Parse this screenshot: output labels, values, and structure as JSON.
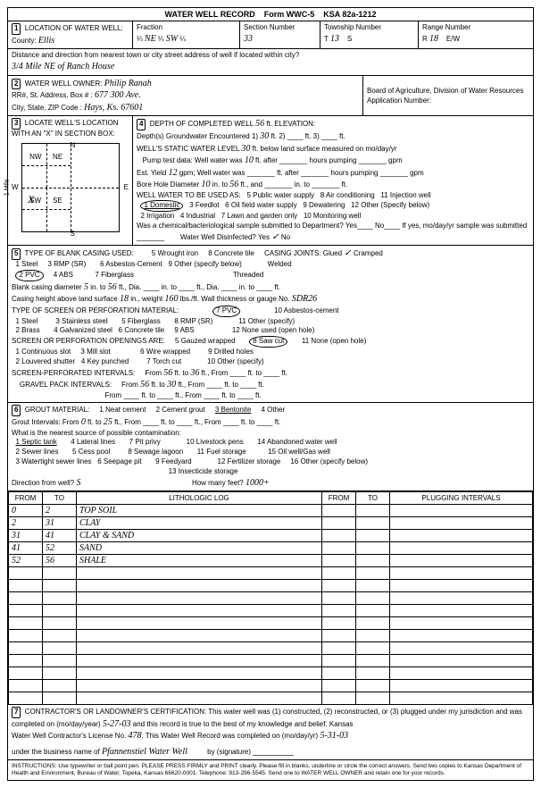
{
  "form": {
    "title": "WATER WELL RECORD",
    "formNo": "Form WWC-5",
    "ksa": "KSA 82a-1212"
  },
  "sec1": {
    "label": "LOCATION OF WATER WELL:",
    "countyLabel": "County:",
    "county": "Ellis",
    "fractionLabel": "Fraction",
    "frac1": "NE",
    "frac2": "SW",
    "sectionLabel": "Section Number",
    "section": "33",
    "townshipLabel": "Township Number",
    "township_t": "T",
    "township": "13",
    "township_s": "S",
    "rangeLabel": "Range Number",
    "range_r": "R",
    "range": "18",
    "range_ew": "E/W",
    "distanceLabel": "Distance and direction from nearest town or city street address of well if located within city?",
    "distance": "3/4 Mile NE of Ranch House"
  },
  "sec2": {
    "label": "WATER WELL OWNER:",
    "owner": "Philip Ranah",
    "addrLabel": "RR#, St. Address, Box # :",
    "addr": "677 300 Ave.",
    "cityLabel": "City, State, ZIP Code :",
    "city": "Hays, Ks. 67601",
    "boardLabel": "Board of Agriculture, Division of Water Resources",
    "appLabel": "Application Number:"
  },
  "sec3": {
    "label": "LOCATE WELL'S LOCATION WITH AN \"X\" IN SECTION BOX:",
    "n": "N",
    "s": "S",
    "e": "E",
    "w": "W",
    "nw": "NW",
    "ne": "NE",
    "sw": "SW",
    "se": "SE",
    "mile": "1 Mile"
  },
  "sec4": {
    "label": "DEPTH OF COMPLETED WELL",
    "depth": "56",
    "depthFt": "ft. ELEVATION:",
    "gwLabel": "Depth(s) Groundwater Encountered",
    "gw1": "30",
    "swlLabel": "WELL'S STATIC WATER LEVEL",
    "swl": "30",
    "swlSuffix": "ft. below land surface measured on mo/day/yr",
    "pumpLabel": "Pump test data: Well water was",
    "pump": "10",
    "pumpSuffix": "ft. after _______ hours pumping _______ gpm",
    "estLabel": "Est. Yield",
    "est": "12",
    "estSuffix": "gpm; Well water was _______ ft. after _______ hours pumping _______ gpm",
    "boreLabel": "Bore Hole Diameter",
    "bore1": "10",
    "boreMid": "in. to",
    "bore2": "56",
    "boreSuffix": "ft., and _______ in. to _______ ft.",
    "useLabel": "WELL WATER TO BE USED AS:",
    "use1": "1 Domestic",
    "use2": "2 Irrigation",
    "use3": "3 Feedlot",
    "use4": "4 Industrial",
    "use5": "5 Public water supply",
    "use6": "6 Oil field water supply",
    "use7": "7 Lawn and garden only",
    "use8": "8 Air conditioning",
    "use9": "9 Dewatering",
    "use10": "10 Monitoring well",
    "use11": "11 Injection well",
    "use12": "12 Other (Specify below)",
    "bactLabel": "Was a chemical/bacteriological sample submitted to Department? Yes____ No____ If yes, mo/day/yr sample was submitted _______",
    "disinfLabel": "Water Well Disinfected? Yes",
    "disinfNo": "No"
  },
  "sec5": {
    "label": "TYPE OF BLANK CASING USED:",
    "c1": "1 Steel",
    "c2": "2 PVC",
    "c3": "3 RMP (SR)",
    "c4": "4 ABS",
    "c5": "5 Wrought iron",
    "c6": "6 Asbestos-Cement",
    "c7": "7 Fiberglass",
    "c8": "8 Concrete tile",
    "c9": "9 Other (specify below)",
    "jointsLabel": "CASING JOINTS: Glued",
    "joints2": "Cramped",
    "joints3": "Welded",
    "joints4": "Threaded",
    "diamLabel": "Blank casing diameter",
    "diam": "5",
    "diamMid": "in. to",
    "diam2": "56",
    "diamSuffix": "ft., Dia. ____ in. to ____ ft., Dia. ____ in. to ____ ft.",
    "heightLabel": "Casing height above land surface",
    "height": "18",
    "heightMid": "in., weight",
    "weight": "160",
    "weightSuffix": "lbs./ft. Wall thickness or gauge No.",
    "gauge": "SDR26",
    "screenLabel": "TYPE OF SCREEN OR PERFORATION MATERIAL:",
    "s1": "1 Steel",
    "s2": "2 Brass",
    "s3": "3 Stainless steel",
    "s4": "4 Galvanized steel",
    "s5": "5 Fiberglass",
    "s6": "6 Concrete tile",
    "s7": "7 PVC",
    "s8": "8 RMP (SR)",
    "s9": "9 ABS",
    "s10": "10 Asbestos-cement",
    "s11": "11 Other (specify)",
    "s12": "12 None used (open hole)",
    "openLabel": "SCREEN OR PERFORATION OPENINGS ARE:",
    "o1": "1 Continuous slot",
    "o2": "2 Louvered shutter",
    "o3": "3 Mill slot",
    "o4": "4 Key punched",
    "o5": "5 Gauzed wrapped",
    "o6": "6 Wire wrapped",
    "o7": "7 Torch cut",
    "o8": "8 Saw cut",
    "o9": "9 Drilled holes",
    "o10": "10 Other (specify)",
    "o11": "11 None (open hole)",
    "perfLabel": "SCREEN-PERFORATED INTERVALS:",
    "perfFrom": "From",
    "perf1": "56",
    "perfTo": "ft. to",
    "perf2": "36",
    "perfSuffix": "ft., From ____ ft. to ____ ft.",
    "gravLabel": "GRAVEL PACK INTERVALS:",
    "grav1": "56",
    "grav2": "30"
  },
  "sec6": {
    "label": "GROUT MATERIAL:",
    "g1": "1 Neat cement",
    "g2": "2 Cement grout",
    "g3": "3 Bentonite",
    "g4": "4 Other",
    "intLabel": "Grout Intervals:   From",
    "int1": "0",
    "intTo": "ft. to",
    "int2": "25",
    "intSuffix": "ft., From ____ ft. to ____ ft., From ____ ft. to ____ ft.",
    "contamLabel": "What is the nearest source of possible contamination:",
    "p1": "1 Septic tank",
    "p2": "2 Sewer lines",
    "p3": "3 Watertight sewer lines",
    "p4": "4 Lateral lines",
    "p5": "5 Cess pool",
    "p6": "6 Seepage pit",
    "p7": "7 Pit privy",
    "p8": "8 Sewage lagoon",
    "p9": "9 Feedyard",
    "p10": "10 Livestock pens",
    "p11": "11 Fuel storage",
    "p12": "12 Fertilizer storage",
    "p13": "13 Insecticide storage",
    "p14": "14 Abandoned water well",
    "p15": "15 Oil well/Gas well",
    "p16": "16 Other (specify below)",
    "dirLabel": "Direction from well?",
    "dir": "S",
    "feetLabel": "How many feet?",
    "feet": "1000+"
  },
  "log": {
    "hFrom": "FROM",
    "hTo": "TO",
    "hLith": "LITHOLOGIC LOG",
    "hFrom2": "FROM",
    "hTo2": "TO",
    "hPlug": "PLUGGING INTERVALS",
    "rows": [
      {
        "f": "0",
        "t": "2",
        "d": "TOP SOIL"
      },
      {
        "f": "2",
        "t": "31",
        "d": "CLAY"
      },
      {
        "f": "31",
        "t": "41",
        "d": "CLAY & SAND"
      },
      {
        "f": "41",
        "t": "52",
        "d": "SAND"
      },
      {
        "f": "52",
        "t": "56",
        "d": "SHALE"
      }
    ]
  },
  "sec7": {
    "label": "CONTRACTOR'S OR LANDOWNER'S CERTIFICATION:",
    "text1": "This water well was (1) constructed, (2) reconstructed, or (3) plugged under my jurisdiction and was",
    "text2": "completed on (mo/day/year)",
    "date1": "5-27-03",
    "text3": "and this record is true to the best of my knowledge and belief. Kansas",
    "text4": "Water Well Contractor's License No.",
    "license": "478",
    "text5": "This Water Well Record was completed on (mo/day/yr)",
    "date2": "5-31-03",
    "text6": "under the business name of",
    "business": "Pfannenstiel Water Well",
    "text7": "by (signature)"
  },
  "instr": "INSTRUCTIONS: Use typewriter or ball point pen. PLEASE PRESS FIRMLY and PRINT clearly. Please fill in blanks, underline or circle the correct answers. Send two copies to Kansas Department of Health and Environment, Bureau of Water, Topeka, Kansas 66620-0001. Telephone: 913-296-5545. Send one to WATER WELL OWNER and retain one for your records."
}
